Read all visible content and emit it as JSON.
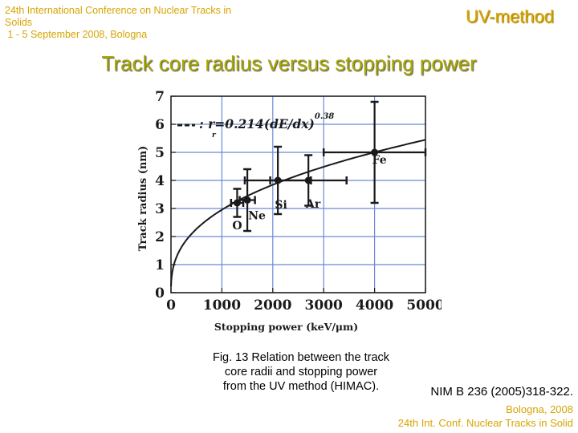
{
  "header": {
    "conference_lines": [
      "24th International Conference on Nuclear Tracks in",
      "Solids",
      " 1 - 5 September 2008, Bologna"
    ],
    "method": "UV-method",
    "title": "Track core radius versus stopping power"
  },
  "colors": {
    "header_gold": "#d7a400",
    "title_olive": "#a8a800",
    "grid": "#6a8ad8",
    "ink": "#1a1a1a"
  },
  "chart_data": {
    "type": "scatter",
    "xlabel": "Stopping power (keV/μm)",
    "ylabel": "Track radius (nm)",
    "xlim": [
      0,
      5000
    ],
    "ylim": [
      0,
      7
    ],
    "xticks": [
      0,
      1000,
      2000,
      3000,
      4000,
      5000
    ],
    "yticks": [
      0,
      1,
      2,
      3,
      4,
      5,
      6,
      7
    ],
    "grid": true,
    "legend_position": "top-left",
    "fit": {
      "label_prefix": ": r",
      "label_sub": "r",
      "label_body": "=0.214(dE/dx)",
      "label_exp": "0.38",
      "a": 0.214,
      "b": 0.38
    },
    "points": [
      {
        "label": "O",
        "x": 1300,
        "y": 3.2,
        "xerr": 120,
        "yerr": 0.5
      },
      {
        "label": "Ne",
        "x": 1500,
        "y": 3.3,
        "xerr": 150,
        "yerr": 1.1
      },
      {
        "label": "Si",
        "x": 2100,
        "y": 4.0,
        "xerr": 650,
        "yerr": 1.2
      },
      {
        "label": "Ar",
        "x": 2700,
        "y": 4.0,
        "xerr": 750,
        "yerr": 0.9
      },
      {
        "label": "Fe",
        "x": 4000,
        "y": 5.0,
        "xerr": 1000,
        "yerr": 1.8
      }
    ]
  },
  "caption_lines": [
    "Fig. 13 Relation between the track",
    "core radii and stopping power",
    "from the UV method (HIMAC)."
  ],
  "reference": "NIM B 236 (2005)318-322.",
  "footer_lines": [
    "Bologna,  2008",
    "24th Int. Conf. Nuclear Tracks in Solid"
  ]
}
